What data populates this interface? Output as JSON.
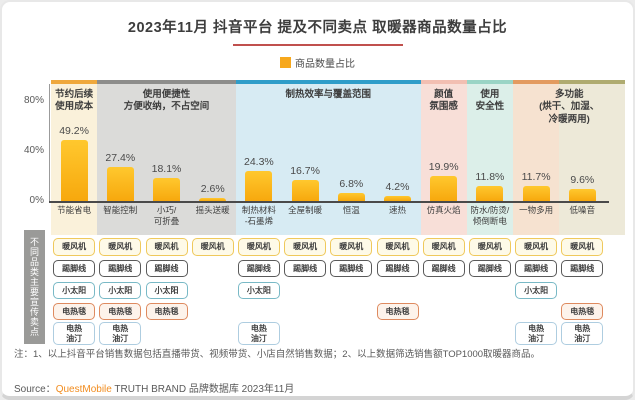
{
  "slide": {
    "title": "2023年11月 抖音平台 提及不同卖点 取暖器商品数量占比",
    "legend_label": "商品数量占比",
    "row_axis_label": "不同品类主要宣传卖点",
    "note": "注：1、以上抖音平台销售数据包括直播带货、视频带货、小店自然销售数据；2、以上数据筛选销售额TOP1000取暖器商品。",
    "source_label": "Source：",
    "source_brand": "QuestMobile",
    "source_rest": " TRUTH BRAND 品牌数据库 2023年11月",
    "accent_line_color": "#C0504D",
    "legend_swatch_color": "#F7A81D"
  },
  "chart_data": {
    "type": "bar",
    "title": "2023年11月 抖音平台 提及不同卖点 取暖器商品数量占比",
    "legend": [
      "商品数量占比"
    ],
    "legend_position": "top-center",
    "xlabel": "",
    "ylabel": "",
    "ylim": [
      0,
      88
    ],
    "grid": false,
    "bar_color": "#F9AE13",
    "yticks": [
      {
        "label": "80%",
        "value": 80
      },
      {
        "label": "40%",
        "value": 40
      },
      {
        "label": "0%",
        "value": 0
      }
    ],
    "categories": [
      "节能省电",
      "智能控制",
      "小巧/可折叠",
      "摇头送暖",
      "制热材料-石墨烯",
      "全屋制暖",
      "恒温",
      "速热",
      "仿真火焰",
      "防水/防烫/倾倒断电",
      "一物多用",
      "低噪音"
    ],
    "axis_labels": [
      "节能省电",
      "智能控制",
      "小巧/\n可折叠",
      "摇头送暖",
      "制热材料\n-石墨烯",
      "全屋制暖",
      "恒温",
      "速热",
      "仿真火焰",
      "防水/防烫/\n倾倒断电",
      "一物多用",
      "低噪音"
    ],
    "values": [
      49.2,
      27.4,
      18.1,
      2.6,
      24.3,
      16.7,
      6.8,
      4.2,
      19.9,
      11.8,
      11.7,
      9.6
    ],
    "bands": [
      {
        "cols": [
          0,
          0
        ],
        "bg": "#FAF1DA",
        "border": "#EFA83C"
      },
      {
        "cols": [
          1,
          3
        ],
        "bg": "#DBDBD9",
        "border": "#8D8D8B"
      },
      {
        "cols": [
          4,
          7
        ],
        "bg": "#D7EBF3",
        "border": "#2F9DC9"
      },
      {
        "cols": [
          8,
          8
        ],
        "bg": "#F8DFD8",
        "border": "#F2BFB2"
      },
      {
        "cols": [
          9,
          9
        ],
        "bg": "#DCEFE9",
        "border": "#9AD4C5"
      },
      {
        "cols": [
          10,
          10
        ],
        "bg": "#F6E2D0",
        "border": "#E39A5F"
      },
      {
        "cols": [
          11,
          11
        ],
        "bg": "#EDE9D8",
        "border": "#AFAB70",
        "extend": 20
      }
    ],
    "groups": [
      {
        "label": "节约后续\n使用成本",
        "cols": [
          0,
          0
        ]
      },
      {
        "label": "使用便捷性\n方便收纳，不占空间",
        "cols": [
          1,
          3
        ]
      },
      {
        "label": "制热效率与覆盖范围",
        "cols": [
          4,
          7
        ]
      },
      {
        "label": "颜值\n氛围感",
        "cols": [
          8,
          8
        ]
      },
      {
        "label": "使用\n安全性",
        "cols": [
          9,
          9
        ]
      },
      {
        "label": "多功能\n(烘干、加湿、\n冷暖两用)",
        "cols": [
          10,
          11
        ],
        "extend": 20
      }
    ],
    "product_rows": [
      {
        "name": "暖风机",
        "label": "暖风机",
        "cols": [
          0,
          1,
          2,
          3,
          4,
          5,
          6,
          7,
          8,
          9,
          10,
          11
        ],
        "border": "#EFC95C",
        "bg": "#FEFAE8"
      },
      {
        "name": "踢脚线",
        "label": "踢脚线",
        "cols": [
          0,
          1,
          2,
          4,
          5,
          6,
          7,
          8,
          9,
          10,
          11
        ],
        "border": "#5A5A5A",
        "bg": "#FFFFFF"
      },
      {
        "name": "小太阳",
        "label": "小太阳",
        "cols": [
          0,
          1,
          2,
          4,
          10
        ],
        "border": "#79B9C6",
        "bg": "#FFFFFF"
      },
      {
        "name": "电热毯",
        "label": "电热毯",
        "cols": [
          0,
          1,
          2,
          7,
          11
        ],
        "border": "#DE8A5F",
        "bg": "#FDF3EB"
      },
      {
        "name": "电热油汀",
        "label": "电热\n油汀",
        "cols": [
          0,
          1,
          4,
          10,
          11
        ],
        "border": "#AECDE0",
        "bg": "#FFFFFF"
      }
    ]
  }
}
